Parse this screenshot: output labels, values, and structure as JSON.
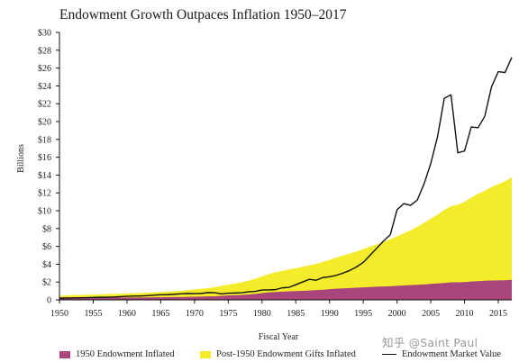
{
  "page": {
    "watermark": "知乎 @Saint Paul"
  },
  "chart_data": {
    "type": "area",
    "title": "Endowment Growth Outpaces Inflation 1950–2017",
    "xlabel": "Fiscal Year",
    "ylabel": "Billions",
    "xlim": [
      1950,
      2017
    ],
    "ylim": [
      0,
      30
    ],
    "x_ticks": [
      1950,
      1955,
      1960,
      1965,
      1970,
      1975,
      1980,
      1985,
      1990,
      1995,
      2000,
      2005,
      2010,
      2015
    ],
    "y_ticks": [
      "0",
      "$2",
      "$4",
      "$6",
      "$8",
      "$10",
      "$12",
      "$14",
      "$16",
      "$18",
      "$20",
      "$22",
      "$24",
      "$26",
      "$28",
      "$30"
    ],
    "legend_position": "bottom",
    "grid": false,
    "x": [
      1950,
      1951,
      1952,
      1953,
      1954,
      1955,
      1956,
      1957,
      1958,
      1959,
      1960,
      1961,
      1962,
      1963,
      1964,
      1965,
      1966,
      1967,
      1968,
      1969,
      1970,
      1971,
      1972,
      1973,
      1974,
      1975,
      1976,
      1977,
      1978,
      1979,
      1980,
      1981,
      1982,
      1983,
      1984,
      1985,
      1986,
      1987,
      1988,
      1989,
      1990,
      1991,
      1992,
      1993,
      1994,
      1995,
      1996,
      1997,
      1998,
      1999,
      2000,
      2001,
      2002,
      2003,
      2004,
      2005,
      2006,
      2007,
      2008,
      2009,
      2010,
      2011,
      2012,
      2013,
      2014,
      2015,
      2016,
      2017
    ],
    "series": [
      {
        "name": "1950 Endowment Inflated",
        "color": "#a8457a",
        "values": [
          0.21,
          0.23,
          0.24,
          0.24,
          0.24,
          0.24,
          0.25,
          0.26,
          0.26,
          0.27,
          0.27,
          0.27,
          0.28,
          0.28,
          0.29,
          0.29,
          0.3,
          0.31,
          0.32,
          0.34,
          0.36,
          0.37,
          0.39,
          0.41,
          0.46,
          0.5,
          0.53,
          0.56,
          0.6,
          0.67,
          0.76,
          0.84,
          0.89,
          0.92,
          0.96,
          0.99,
          1.01,
          1.05,
          1.09,
          1.14,
          1.2,
          1.25,
          1.29,
          1.33,
          1.36,
          1.4,
          1.44,
          1.48,
          1.5,
          1.53,
          1.58,
          1.62,
          1.65,
          1.69,
          1.73,
          1.79,
          1.85,
          1.9,
          1.97,
          1.97,
          2.0,
          2.06,
          2.1,
          2.14,
          2.17,
          2.18,
          2.2,
          2.25
        ]
      },
      {
        "name": "Post-1950 Endowment Gifts Inflated",
        "color": "#f4ec2a",
        "values": [
          0.25,
          0.28,
          0.3,
          0.32,
          0.33,
          0.35,
          0.37,
          0.39,
          0.41,
          0.43,
          0.45,
          0.47,
          0.49,
          0.52,
          0.55,
          0.58,
          0.62,
          0.65,
          0.7,
          0.75,
          0.81,
          0.87,
          0.93,
          1.0,
          1.1,
          1.2,
          1.3,
          1.42,
          1.55,
          1.7,
          1.87,
          2.05,
          2.2,
          2.33,
          2.45,
          2.56,
          2.7,
          2.82,
          2.95,
          3.1,
          3.3,
          3.5,
          3.68,
          3.87,
          4.07,
          4.3,
          4.52,
          4.75,
          5.0,
          5.28,
          5.55,
          5.85,
          6.15,
          6.5,
          6.9,
          7.3,
          7.7,
          8.2,
          8.55,
          8.7,
          9.0,
          9.4,
          9.8,
          10.1,
          10.5,
          10.8,
          11.1,
          11.5
        ]
      },
      {
        "name": "Endowment Market Value",
        "color": "#111111",
        "values": [
          0.2,
          0.21,
          0.22,
          0.23,
          0.25,
          0.27,
          0.29,
          0.3,
          0.32,
          0.36,
          0.4,
          0.42,
          0.44,
          0.47,
          0.52,
          0.57,
          0.58,
          0.63,
          0.68,
          0.72,
          0.7,
          0.72,
          0.82,
          0.8,
          0.68,
          0.75,
          0.77,
          0.8,
          0.9,
          0.95,
          1.1,
          1.12,
          1.15,
          1.35,
          1.4,
          1.7,
          2.0,
          2.3,
          2.2,
          2.5,
          2.6,
          2.75,
          3.0,
          3.3,
          3.7,
          4.2,
          5.0,
          5.8,
          6.6,
          7.3,
          10.1,
          10.8,
          10.6,
          11.2,
          13.0,
          15.3,
          18.3,
          22.6,
          23.0,
          16.5,
          16.7,
          19.4,
          19.3,
          20.6,
          23.9,
          25.6,
          25.5,
          27.2
        ]
      }
    ]
  }
}
